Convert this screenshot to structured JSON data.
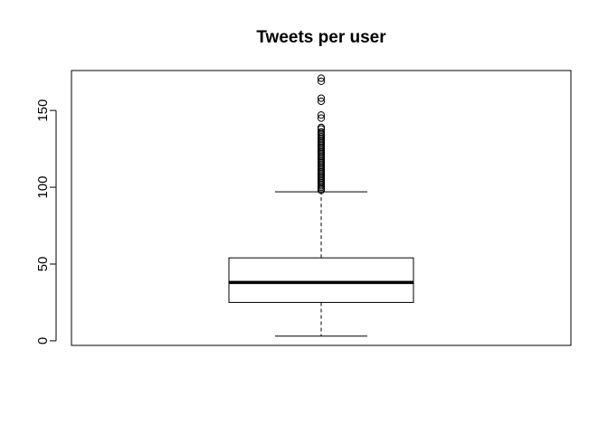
{
  "chart_data": {
    "type": "boxplot",
    "title": "Tweets per user",
    "xlabel": "",
    "ylabel": "",
    "ylim": [
      -3,
      176
    ],
    "yticks": [
      0,
      50,
      100,
      150
    ],
    "ytick_labels": [
      "0",
      "50",
      "100",
      "150"
    ],
    "series": [
      {
        "whisker_low": 3,
        "q1": 25,
        "median": 38,
        "q3": 54,
        "whisker_high": 97,
        "outliers": [
          98,
          99,
          100,
          101,
          102,
          103,
          104,
          105,
          106,
          107,
          108,
          109,
          110,
          111,
          112,
          113,
          114,
          115,
          116,
          117,
          118,
          119,
          120,
          121,
          122,
          123,
          124,
          125,
          126,
          127,
          128,
          129,
          130,
          131,
          132,
          133,
          134,
          135,
          136,
          138,
          139,
          145,
          147,
          156,
          158,
          169,
          171
        ]
      }
    ],
    "grid": false,
    "legend": "none"
  },
  "colors": {
    "axis": "#000000",
    "box_fill": "#ffffff",
    "stroke": "#000000"
  }
}
